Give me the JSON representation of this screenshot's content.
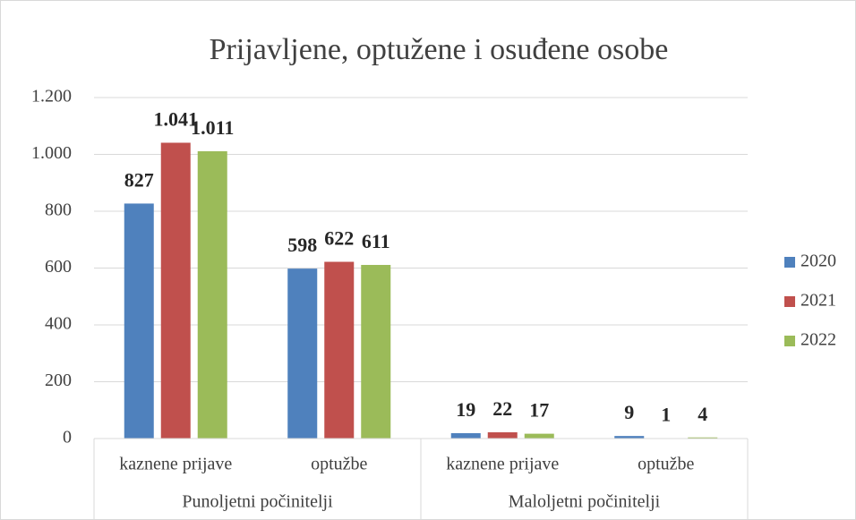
{
  "chart_data": {
    "type": "bar",
    "title": "Prijavljene, optužene i osuđene osobe",
    "groups": [
      {
        "name": "Punoljetni počinitelji",
        "categories": [
          "kaznene prijave",
          "optužbe"
        ]
      },
      {
        "name": "Maloljetni počinitelji",
        "categories": [
          "kaznene prijave",
          "optužbe"
        ]
      }
    ],
    "series": [
      {
        "name": "2020",
        "color": "#4f81bd",
        "values": [
          827,
          598,
          19,
          9
        ],
        "value_labels": [
          "827",
          "598",
          "19",
          "9"
        ]
      },
      {
        "name": "2021",
        "color": "#c0504d",
        "values": [
          1041,
          622,
          22,
          1
        ],
        "value_labels": [
          "1.041",
          "622",
          "22",
          "1"
        ]
      },
      {
        "name": "2022",
        "color": "#9bbb59",
        "values": [
          1011,
          611,
          17,
          4
        ],
        "value_labels": [
          "1.011",
          "611",
          "17",
          "4"
        ]
      }
    ],
    "ylim": [
      0,
      1200
    ],
    "yticks": [
      0,
      200,
      400,
      600,
      800,
      {
        "value": 1000,
        "label": "1.000"
      },
      {
        "value": 1200,
        "label": "1.200"
      }
    ],
    "grid": true,
    "legend": "right"
  }
}
